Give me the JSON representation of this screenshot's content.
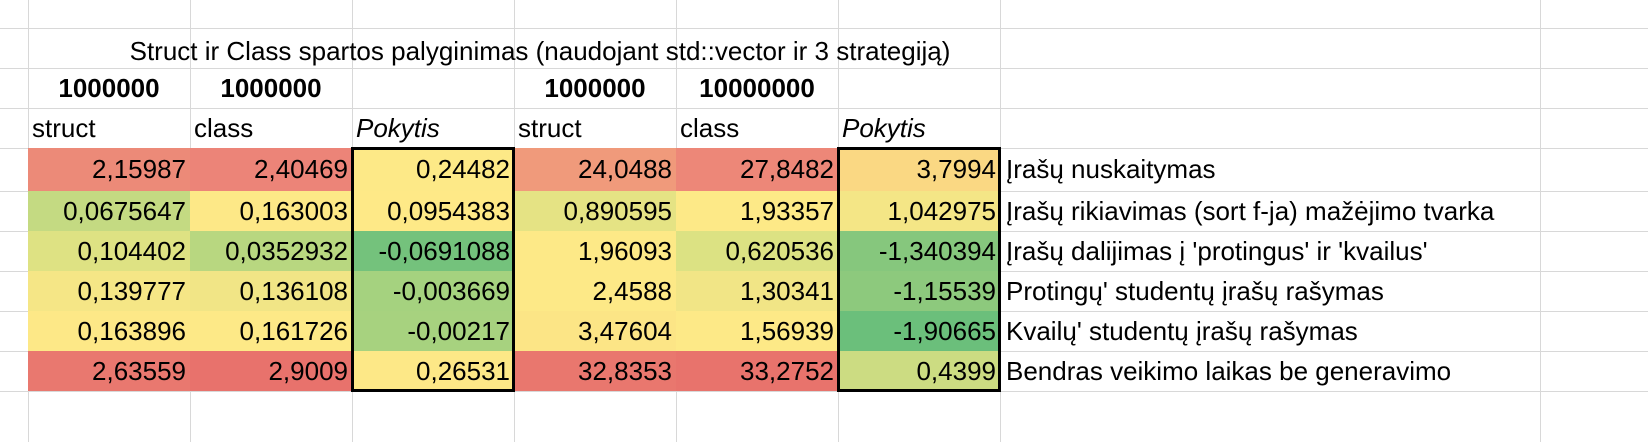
{
  "title": "Struct ir Class spartos palyginimas (naudojant std::vector ir 3 strategiją)",
  "sizes": [
    "1000000",
    "1000000",
    "1000000",
    "10000000"
  ],
  "headers": [
    "struct",
    "class",
    "Pokytis",
    "struct",
    "class",
    "Pokytis"
  ],
  "rows": [
    {
      "values": [
        "2,15987",
        "2,40469",
        "0,24482",
        "24,0488",
        "27,8482",
        "3,7994"
      ],
      "colors": [
        "#ec8a78",
        "#ec8478",
        "#fde987",
        "#f09a7b",
        "#ed8778",
        "#fad883"
      ],
      "label": "Įrašų nuskaitymas"
    },
    {
      "values": [
        "0,0675647",
        "0,163003",
        "0,0954383",
        "0,890595",
        "1,93357",
        "1,042975"
      ],
      "colors": [
        "#c4da82",
        "#fde887",
        "#fee987",
        "#e5e384",
        "#fde987",
        "#f4e686"
      ],
      "label": "Įrašų rikiavimas (sort f-ja) mažėjimo tvarka"
    },
    {
      "values": [
        "0,104402",
        "0,0352932",
        "-0,0691088",
        "1,96093",
        "0,620536",
        "-1,340394"
      ],
      "colors": [
        "#dee283",
        "#b8d780",
        "#74c27c",
        "#fde987",
        "#dce283",
        "#86c77d"
      ],
      "label": "Įrašų dalijimas į 'protingus' ir 'kvailus'"
    },
    {
      "values": [
        "0,139777",
        "0,136108",
        "-0,003669",
        "2,4588",
        "1,30341",
        "-1,15539"
      ],
      "colors": [
        "#f5e686",
        "#f1e586",
        "#a5d27f",
        "#fde987",
        "#f1e586",
        "#8dc97d"
      ],
      "label": "Protingų' studentų įrašų rašymas"
    },
    {
      "values": [
        "0,163896",
        "0,161726",
        "-0,00217",
        "3,47604",
        "1,56939",
        "-1,90665"
      ],
      "colors": [
        "#fde887",
        "#fde987",
        "#a7d27f",
        "#fce586",
        "#fde987",
        "#6bbf7b"
      ],
      "label": "Kvailų' studentų įrašų rašymas"
    },
    {
      "values": [
        "2,63559",
        "2,9009",
        "0,26531",
        "32,8353",
        "33,2752",
        "0,4399"
      ],
      "colors": [
        "#e9786f",
        "#e8726c",
        "#fde887",
        "#e9776e",
        "#e8736c",
        "#ccdc82"
      ],
      "label": "Bendras veikimo laikas be generavimo"
    }
  ]
}
